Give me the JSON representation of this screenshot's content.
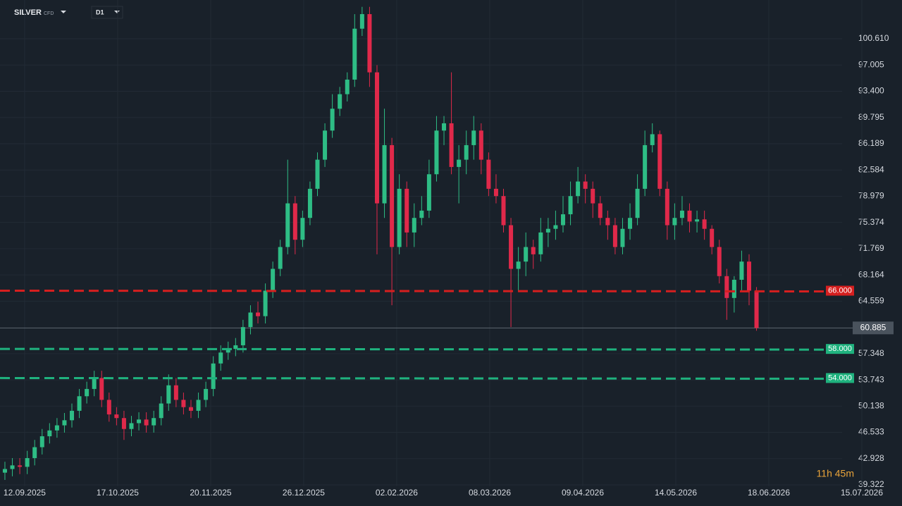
{
  "chart_data": {
    "type": "candlestick",
    "symbol": "SILVER",
    "instrument": "CFD",
    "timeframe": "D1",
    "timer": "11h 45m",
    "up_color": "#2ebd85",
    "down_color": "#e0294a",
    "open": [
      41,
      41.5,
      42,
      41.8,
      43,
      44.5,
      46,
      46.8,
      47.5,
      48.2,
      49.5,
      51.5,
      52.5,
      54,
      51,
      49,
      48.5,
      47,
      47.8,
      48.3,
      47.5,
      48.5,
      50.5,
      53,
      51,
      50,
      49.5,
      51,
      52.5,
      56,
      57.5,
      58,
      58.5,
      61,
      63,
      62.5,
      66,
      69,
      72,
      78,
      73,
      76,
      80,
      84,
      88,
      91,
      93,
      95,
      102,
      104,
      96,
      78,
      86,
      72,
      80,
      74,
      76,
      77,
      82,
      88,
      89,
      83,
      84,
      86,
      88,
      84,
      80,
      79,
      75,
      69,
      70,
      72,
      71,
      74,
      74.5,
      75,
      76.5,
      79,
      81,
      80,
      78,
      76,
      75,
      72,
      74.5,
      76,
      80,
      86,
      87.5,
      80,
      75,
      76,
      77,
      75.5,
      75.8,
      74.5,
      72,
      68,
      65,
      67.5,
      70,
      66
    ],
    "high": [
      42.5,
      43,
      43,
      44,
      45.5,
      47,
      47.8,
      48.5,
      49.2,
      50.5,
      52.5,
      53.5,
      55,
      55,
      52,
      50,
      49.5,
      48.8,
      49.3,
      49.3,
      49.5,
      51.5,
      54.5,
      54,
      52,
      51,
      52,
      53.5,
      57,
      58.5,
      59,
      59.5,
      62,
      64,
      64.5,
      67,
      70,
      73,
      84,
      79,
      77,
      81,
      85,
      89,
      93,
      94,
      96,
      104,
      105,
      105,
      97,
      91,
      87,
      82,
      81,
      78,
      79,
      84,
      90,
      90,
      96,
      86,
      88,
      90,
      89,
      85,
      82,
      80,
      76,
      72,
      74,
      73,
      76,
      76,
      77,
      79,
      81,
      83,
      82,
      81,
      79,
      77,
      76,
      76,
      78,
      82,
      88,
      89,
      88,
      81,
      78,
      79,
      78,
      77,
      77,
      75,
      73,
      69,
      68,
      71.5,
      71,
      66.5
    ],
    "low": [
      40,
      40.5,
      40.8,
      40.8,
      42,
      43.5,
      45,
      45.8,
      46.5,
      47.2,
      48.5,
      50.5,
      51.5,
      50,
      48,
      47.5,
      45.5,
      46,
      46.8,
      46.5,
      46.5,
      47.5,
      49.5,
      50,
      49,
      48.5,
      48.5,
      50,
      51.5,
      55,
      56.5,
      57,
      57.5,
      60,
      61.5,
      61.5,
      65,
      68,
      71,
      71,
      72,
      75,
      79,
      83,
      87,
      90,
      92,
      94,
      101,
      94,
      71,
      76,
      64,
      71,
      72,
      72,
      75,
      76,
      81,
      86,
      82,
      78,
      82,
      84,
      82,
      79,
      78,
      74,
      61,
      66,
      68,
      69,
      70,
      72,
      73,
      74,
      75,
      78,
      78,
      76,
      75,
      73,
      71,
      71,
      73,
      75,
      79,
      85,
      79,
      73,
      73,
      75,
      74,
      74,
      73,
      71,
      67,
      62,
      63,
      66,
      64,
      60.5
    ],
    "close": [
      41.5,
      42,
      41.8,
      43,
      44.5,
      46,
      46.8,
      47.5,
      48.2,
      49.5,
      51.5,
      52.5,
      54,
      51,
      49,
      48.5,
      47,
      47.8,
      48.3,
      47.5,
      48.5,
      50.5,
      53,
      51,
      50,
      49.5,
      51,
      52.5,
      56,
      57.5,
      58,
      58.5,
      61,
      63,
      62.5,
      66,
      69,
      72,
      78,
      73,
      76,
      80,
      84,
      88,
      91,
      93,
      95,
      102,
      104,
      96,
      78,
      86,
      72,
      80,
      74,
      76,
      77,
      82,
      88,
      89,
      83,
      84,
      86,
      88,
      84,
      80,
      79,
      75,
      69,
      70,
      72,
      71,
      74,
      74.5,
      75,
      76.5,
      79,
      81,
      80,
      78,
      76,
      75,
      72,
      74.5,
      76,
      80,
      86,
      87.5,
      80,
      75,
      76,
      77,
      75.5,
      75.8,
      74.5,
      72,
      68,
      65,
      67.5,
      70,
      66,
      60.885
    ],
    "xlim": [
      -0.66,
      112.5
    ],
    "xticks": [
      {
        "value": 2.65,
        "label": "12.09.2025"
      },
      {
        "value": 15.15,
        "label": "17.10.2025"
      },
      {
        "value": 27.65,
        "label": "20.11.2025"
      },
      {
        "value": 40.15,
        "label": "26.12.2025"
      },
      {
        "value": 52.65,
        "label": "02.02.2026"
      },
      {
        "value": 65.15,
        "label": "08.03.2026"
      },
      {
        "value": 77.65,
        "label": "09.04.2026"
      },
      {
        "value": 90.15,
        "label": "14.05.2026"
      },
      {
        "value": 102.65,
        "label": "18.06.2026"
      },
      {
        "value": 115.15,
        "label": "15.07.2026"
      }
    ],
    "ylim": [
      39.13,
      105.94
    ],
    "yticks": [
      {
        "value": 100.61,
        "label": "100.610"
      },
      97.005,
      {
        "value": 93.4,
        "label": "93.400"
      },
      89.795,
      86.189,
      82.584,
      78.979,
      75.374,
      71.769,
      68.164,
      64.559,
      57.348,
      53.743,
      50.138,
      46.533,
      42.928,
      39.322
    ],
    "levels": [
      {
        "value": 66,
        "label": "66.000",
        "color": "#d61f1f"
      },
      {
        "value": 58,
        "label": "58.000",
        "color": "#1fb27e"
      },
      {
        "value": 54,
        "label": "54.000",
        "color": "#1fb27e"
      }
    ],
    "last_price": 60.885,
    "grid": true
  }
}
